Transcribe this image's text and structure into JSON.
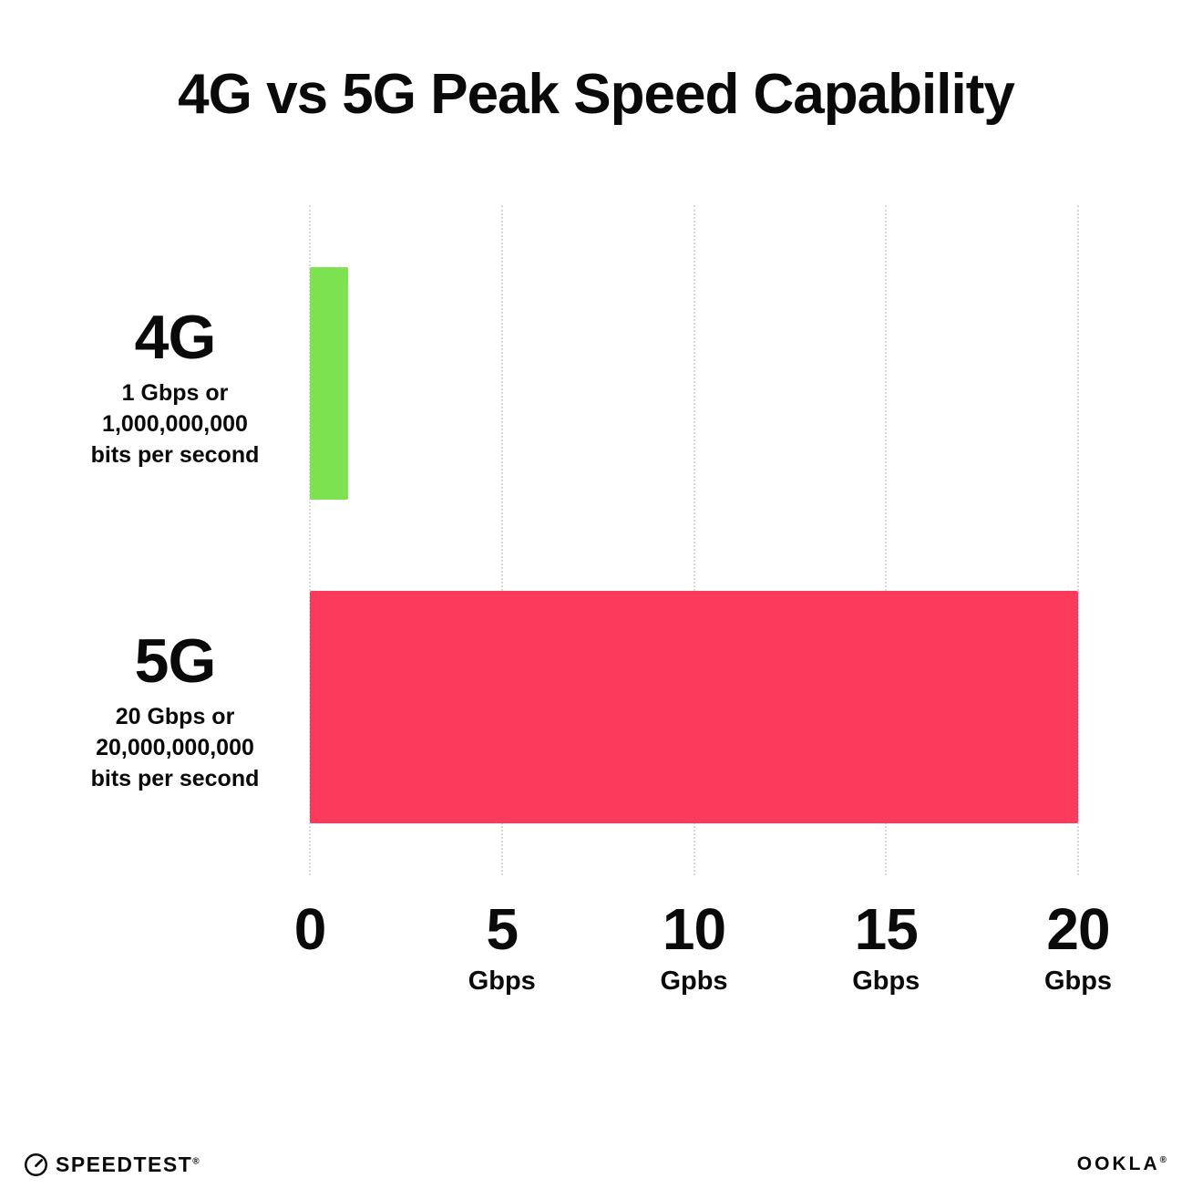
{
  "title": "4G vs 5G Peak Speed Capability",
  "chart_data": {
    "type": "bar",
    "orientation": "horizontal",
    "title": "4G vs 5G Peak Speed Capability",
    "categories": [
      "4G",
      "5G"
    ],
    "values": [
      1,
      20
    ],
    "bar_colors": [
      "#7DE24F",
      "#FC3A5C"
    ],
    "category_sublabels": [
      [
        "1 Gbps or",
        "1,000,000,000",
        "bits per second"
      ],
      [
        "20 Gbps or",
        "20,000,000,000",
        "bits per second"
      ]
    ],
    "xlim": [
      0,
      20
    ],
    "ticks": [
      {
        "value": 0,
        "label": "0",
        "unit": ""
      },
      {
        "value": 5,
        "label": "5",
        "unit": "Gbps"
      },
      {
        "value": 10,
        "label": "10",
        "unit": "Gpbs"
      },
      {
        "value": 15,
        "label": "15",
        "unit": "Gbps"
      },
      {
        "value": 20,
        "label": "20",
        "unit": "Gbps"
      }
    ],
    "grid": "dotted-vertical",
    "legend": "none",
    "xlabel": "",
    "ylabel": ""
  },
  "footer": {
    "speedtest_label": "SPEEDTEST",
    "speedtest_mark": "®",
    "ookla_label": "OOKLA",
    "ookla_mark": "®"
  }
}
